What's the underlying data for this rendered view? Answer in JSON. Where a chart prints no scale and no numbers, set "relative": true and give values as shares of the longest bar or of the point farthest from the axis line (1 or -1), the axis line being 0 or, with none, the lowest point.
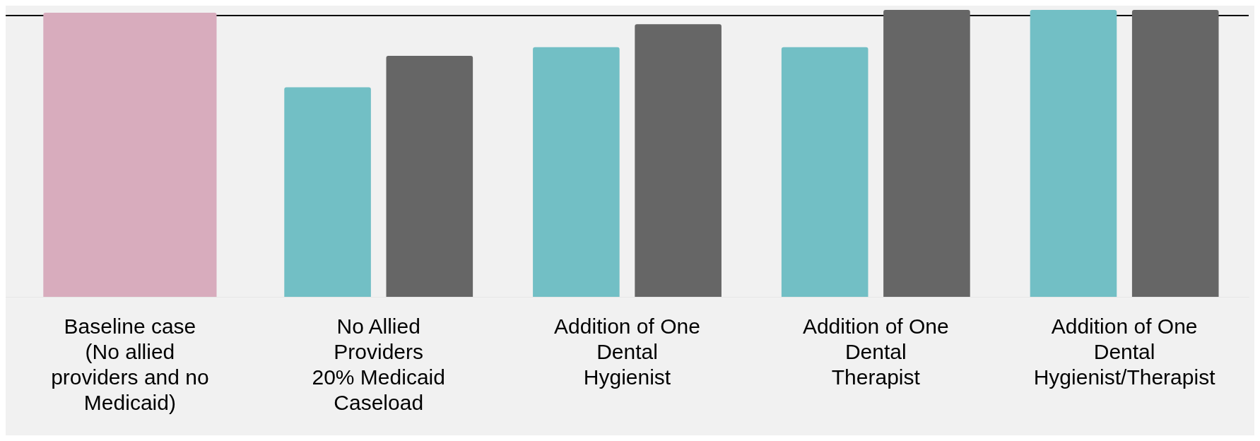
{
  "chart_data": {
    "type": "bar",
    "relative": true,
    "categories": [
      "Baseline case\n(No allied\nproviders and no\nMedicaid)",
      "No Allied\nProviders\n20% Medicaid\nCaseload",
      "Addition of One\nDental\nHygienist",
      "Addition of One\nDental\nTherapist",
      "Addition of One\nDental\nHygienist/Therapist"
    ],
    "series": [
      {
        "color": "#d8acbd",
        "values": [
          0.99,
          null,
          null,
          null,
          null
        ]
      },
      {
        "color": "#72bfc5",
        "values": [
          null,
          0.73,
          0.87,
          0.87,
          1
        ]
      },
      {
        "color": "#666666",
        "values": [
          null,
          0.84,
          0.95,
          1,
          1
        ]
      }
    ],
    "ref_lines": [
      {
        "axis": "y",
        "value": 0.98,
        "color": "#000000"
      }
    ],
    "grid": false,
    "legend": false
  }
}
